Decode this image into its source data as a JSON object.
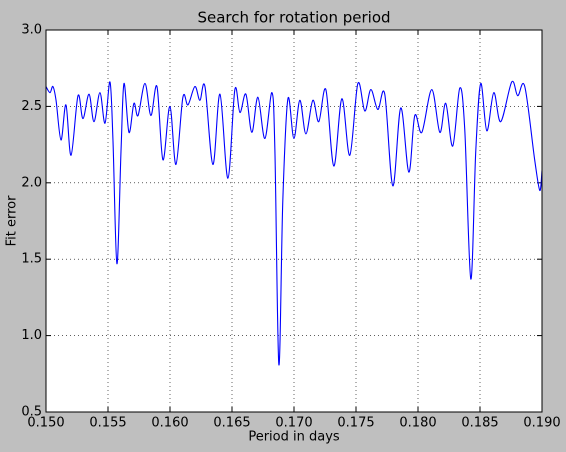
{
  "chart_data": {
    "type": "line",
    "title": "Search for rotation period",
    "x_label": "Period in days",
    "y_label": "Fit error",
    "xlim": [
      0.15,
      0.19
    ],
    "ylim": [
      0.5,
      3.0
    ],
    "xticks": [
      {
        "value": 0.15,
        "label": "0.150"
      },
      {
        "value": 0.155,
        "label": "0.155"
      },
      {
        "value": 0.16,
        "label": "0.160"
      },
      {
        "value": 0.165,
        "label": "0.165"
      },
      {
        "value": 0.17,
        "label": "0.170"
      },
      {
        "value": 0.175,
        "label": "0.175"
      },
      {
        "value": 0.18,
        "label": "0.180"
      },
      {
        "value": 0.185,
        "label": "0.185"
      },
      {
        "value": 0.19,
        "label": "0.190"
      }
    ],
    "yticks": [
      0.5,
      {
        "value": 1,
        "label": "1.0"
      },
      1.5,
      {
        "value": 2,
        "label": "2.0"
      },
      2.5,
      {
        "value": 3,
        "label": "3.0"
      }
    ],
    "grid": true,
    "x": [
      0.15,
      0.15032,
      0.15056,
      0.15081,
      0.15121,
      0.15161,
      0.15202,
      0.15258,
      0.15298,
      0.15347,
      0.15387,
      0.15435,
      0.15476,
      0.15516,
      0.1554,
      0.15572,
      0.15605,
      0.15629,
      0.15669,
      0.15709,
      0.15742,
      0.15798,
      0.15846,
      0.15895,
      0.15943,
      0.15999,
      0.16048,
      0.16104,
      0.16145,
      0.16201,
      0.16241,
      0.16282,
      0.16346,
      0.16403,
      0.16467,
      0.16523,
      0.16564,
      0.16612,
      0.1666,
      0.16709,
      0.16765,
      0.16822,
      0.16846,
      0.16878,
      0.1691,
      0.16951,
      0.16999,
      0.17047,
      0.17096,
      0.17152,
      0.172,
      0.17257,
      0.17321,
      0.17386,
      0.1745,
      0.17515,
      0.17571,
      0.1762,
      0.17676,
      0.17732,
      0.17797,
      0.17861,
      0.17926,
      0.17974,
      0.18031,
      0.18111,
      0.18176,
      0.18224,
      0.1828,
      0.18337,
      0.18377,
      0.18426,
      0.18466,
      0.18506,
      0.18555,
      0.18611,
      0.18667,
      0.18756,
      0.18804,
      0.18861,
      0.18941,
      0.18982,
      0.19
    ],
    "series": [
      {
        "name": "Fit error",
        "color": "#0000ff",
        "values": [
          2.63,
          2.59,
          2.63,
          2.54,
          2.28,
          2.51,
          2.18,
          2.57,
          2.42,
          2.58,
          2.4,
          2.59,
          2.39,
          2.66,
          2.28,
          1.47,
          2.21,
          2.65,
          2.33,
          2.52,
          2.44,
          2.65,
          2.44,
          2.63,
          2.15,
          2.5,
          2.12,
          2.56,
          2.51,
          2.63,
          2.54,
          2.63,
          2.12,
          2.58,
          2.03,
          2.61,
          2.46,
          2.58,
          2.33,
          2.56,
          2.29,
          2.59,
          2.21,
          0.81,
          1.89,
          2.55,
          2.29,
          2.54,
          2.32,
          2.54,
          2.4,
          2.61,
          2.11,
          2.55,
          2.18,
          2.65,
          2.47,
          2.61,
          2.48,
          2.58,
          1.98,
          2.49,
          2.07,
          2.44,
          2.33,
          2.61,
          2.33,
          2.52,
          2.24,
          2.62,
          2.35,
          1.37,
          2.21,
          2.65,
          2.34,
          2.59,
          2.4,
          2.66,
          2.57,
          2.63,
          2.15,
          1.95,
          2.08
        ]
      }
    ]
  }
}
